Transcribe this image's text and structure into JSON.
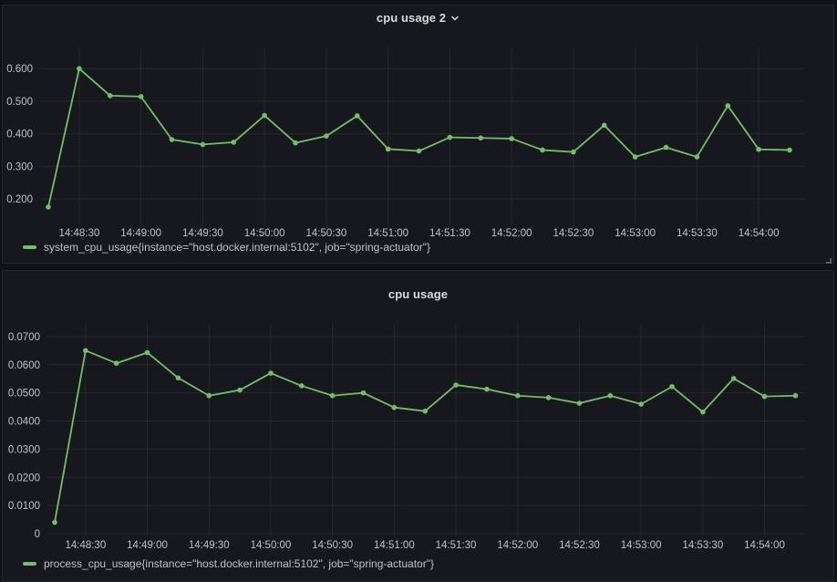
{
  "colors": {
    "series_green": "#73bf69",
    "panel_background": "#16181d",
    "page_background": "#111217",
    "grid": "#26282e",
    "tick_text": "#c0c1c6",
    "title_text": "#d8d9da"
  },
  "panels": [
    {
      "title": "cpu usage 2",
      "menu_chevron_icon": "chevron-down",
      "legend": "system_cpu_usage{instance=\"host.docker.internal:5102\", job=\"spring-actuator\"}"
    },
    {
      "title": "cpu usage",
      "legend": "process_cpu_usage{instance=\"host.docker.internal:5102\", job=\"spring-actuator\"}"
    }
  ],
  "chart_data": [
    {
      "type": "line",
      "title": "cpu usage 2",
      "x": [
        "14:48:15",
        "14:48:30",
        "14:48:45",
        "14:49:00",
        "14:49:15",
        "14:49:30",
        "14:49:45",
        "14:50:00",
        "14:50:15",
        "14:50:30",
        "14:50:45",
        "14:51:00",
        "14:51:15",
        "14:51:30",
        "14:51:45",
        "14:52:00",
        "14:52:15",
        "14:52:30",
        "14:52:45",
        "14:53:00",
        "14:53:15",
        "14:53:30",
        "14:53:45",
        "14:54:00",
        "14:54:15"
      ],
      "series": [
        {
          "name": "system_cpu_usage{instance=\"host.docker.internal:5102\", job=\"spring-actuator\"}",
          "color": "#73bf69",
          "values": [
            0.175,
            0.6,
            0.517,
            0.514,
            0.382,
            0.367,
            0.374,
            0.456,
            0.372,
            0.393,
            0.455,
            0.353,
            0.347,
            0.389,
            0.387,
            0.385,
            0.35,
            0.344,
            0.426,
            0.329,
            0.358,
            0.329,
            0.486,
            0.352,
            0.35
          ]
        }
      ],
      "x_tick_labels": [
        "14:48:30",
        "14:49:00",
        "14:49:30",
        "14:50:00",
        "14:50:30",
        "14:51:00",
        "14:51:30",
        "14:52:00",
        "14:52:30",
        "14:53:00",
        "14:53:30",
        "14:54:00"
      ],
      "y_ticks": [
        {
          "label": "0.600",
          "value": 0.6
        },
        {
          "label": "0.500",
          "value": 0.5
        },
        {
          "label": "0.400",
          "value": 0.4
        },
        {
          "label": "0.300",
          "value": 0.3
        },
        {
          "label": "0.200",
          "value": 0.2
        }
      ],
      "ylim": [
        0.13,
        0.665
      ],
      "grid": true,
      "point_markers": true,
      "legend_position": "bottom-left"
    },
    {
      "type": "line",
      "title": "cpu usage",
      "x": [
        "14:48:15",
        "14:48:30",
        "14:48:45",
        "14:49:00",
        "14:49:15",
        "14:49:30",
        "14:49:45",
        "14:50:00",
        "14:50:15",
        "14:50:30",
        "14:50:45",
        "14:51:00",
        "14:51:15",
        "14:51:30",
        "14:51:45",
        "14:52:00",
        "14:52:15",
        "14:52:30",
        "14:52:45",
        "14:53:00",
        "14:53:15",
        "14:53:30",
        "14:53:45",
        "14:54:00",
        "14:54:15"
      ],
      "series": [
        {
          "name": "process_cpu_usage{instance=\"host.docker.internal:5102\", job=\"spring-actuator\"}",
          "color": "#73bf69",
          "values": [
            0.004,
            0.065,
            0.0605,
            0.0643,
            0.0553,
            0.049,
            0.051,
            0.057,
            0.0525,
            0.049,
            0.05,
            0.0448,
            0.0435,
            0.0528,
            0.0513,
            0.049,
            0.0483,
            0.0463,
            0.049,
            0.046,
            0.0522,
            0.0432,
            0.0551,
            0.0487,
            0.049
          ]
        }
      ],
      "x_tick_labels": [
        "14:48:30",
        "14:49:00",
        "14:49:30",
        "14:50:00",
        "14:50:30",
        "14:51:00",
        "14:51:30",
        "14:52:00",
        "14:52:30",
        "14:53:00",
        "14:53:30",
        "14:54:00"
      ],
      "y_ticks": [
        {
          "label": "0.0700",
          "value": 0.07
        },
        {
          "label": "0.0600",
          "value": 0.06
        },
        {
          "label": "0.0500",
          "value": 0.05
        },
        {
          "label": "0.0400",
          "value": 0.04
        },
        {
          "label": "0.0300",
          "value": 0.03
        },
        {
          "label": "0.0200",
          "value": 0.02
        },
        {
          "label": "0.0100",
          "value": 0.01
        },
        {
          "label": "0",
          "value": 0
        }
      ],
      "ylim": [
        0,
        0.0745
      ],
      "grid": true,
      "point_markers": true,
      "legend_position": "bottom-left"
    }
  ]
}
